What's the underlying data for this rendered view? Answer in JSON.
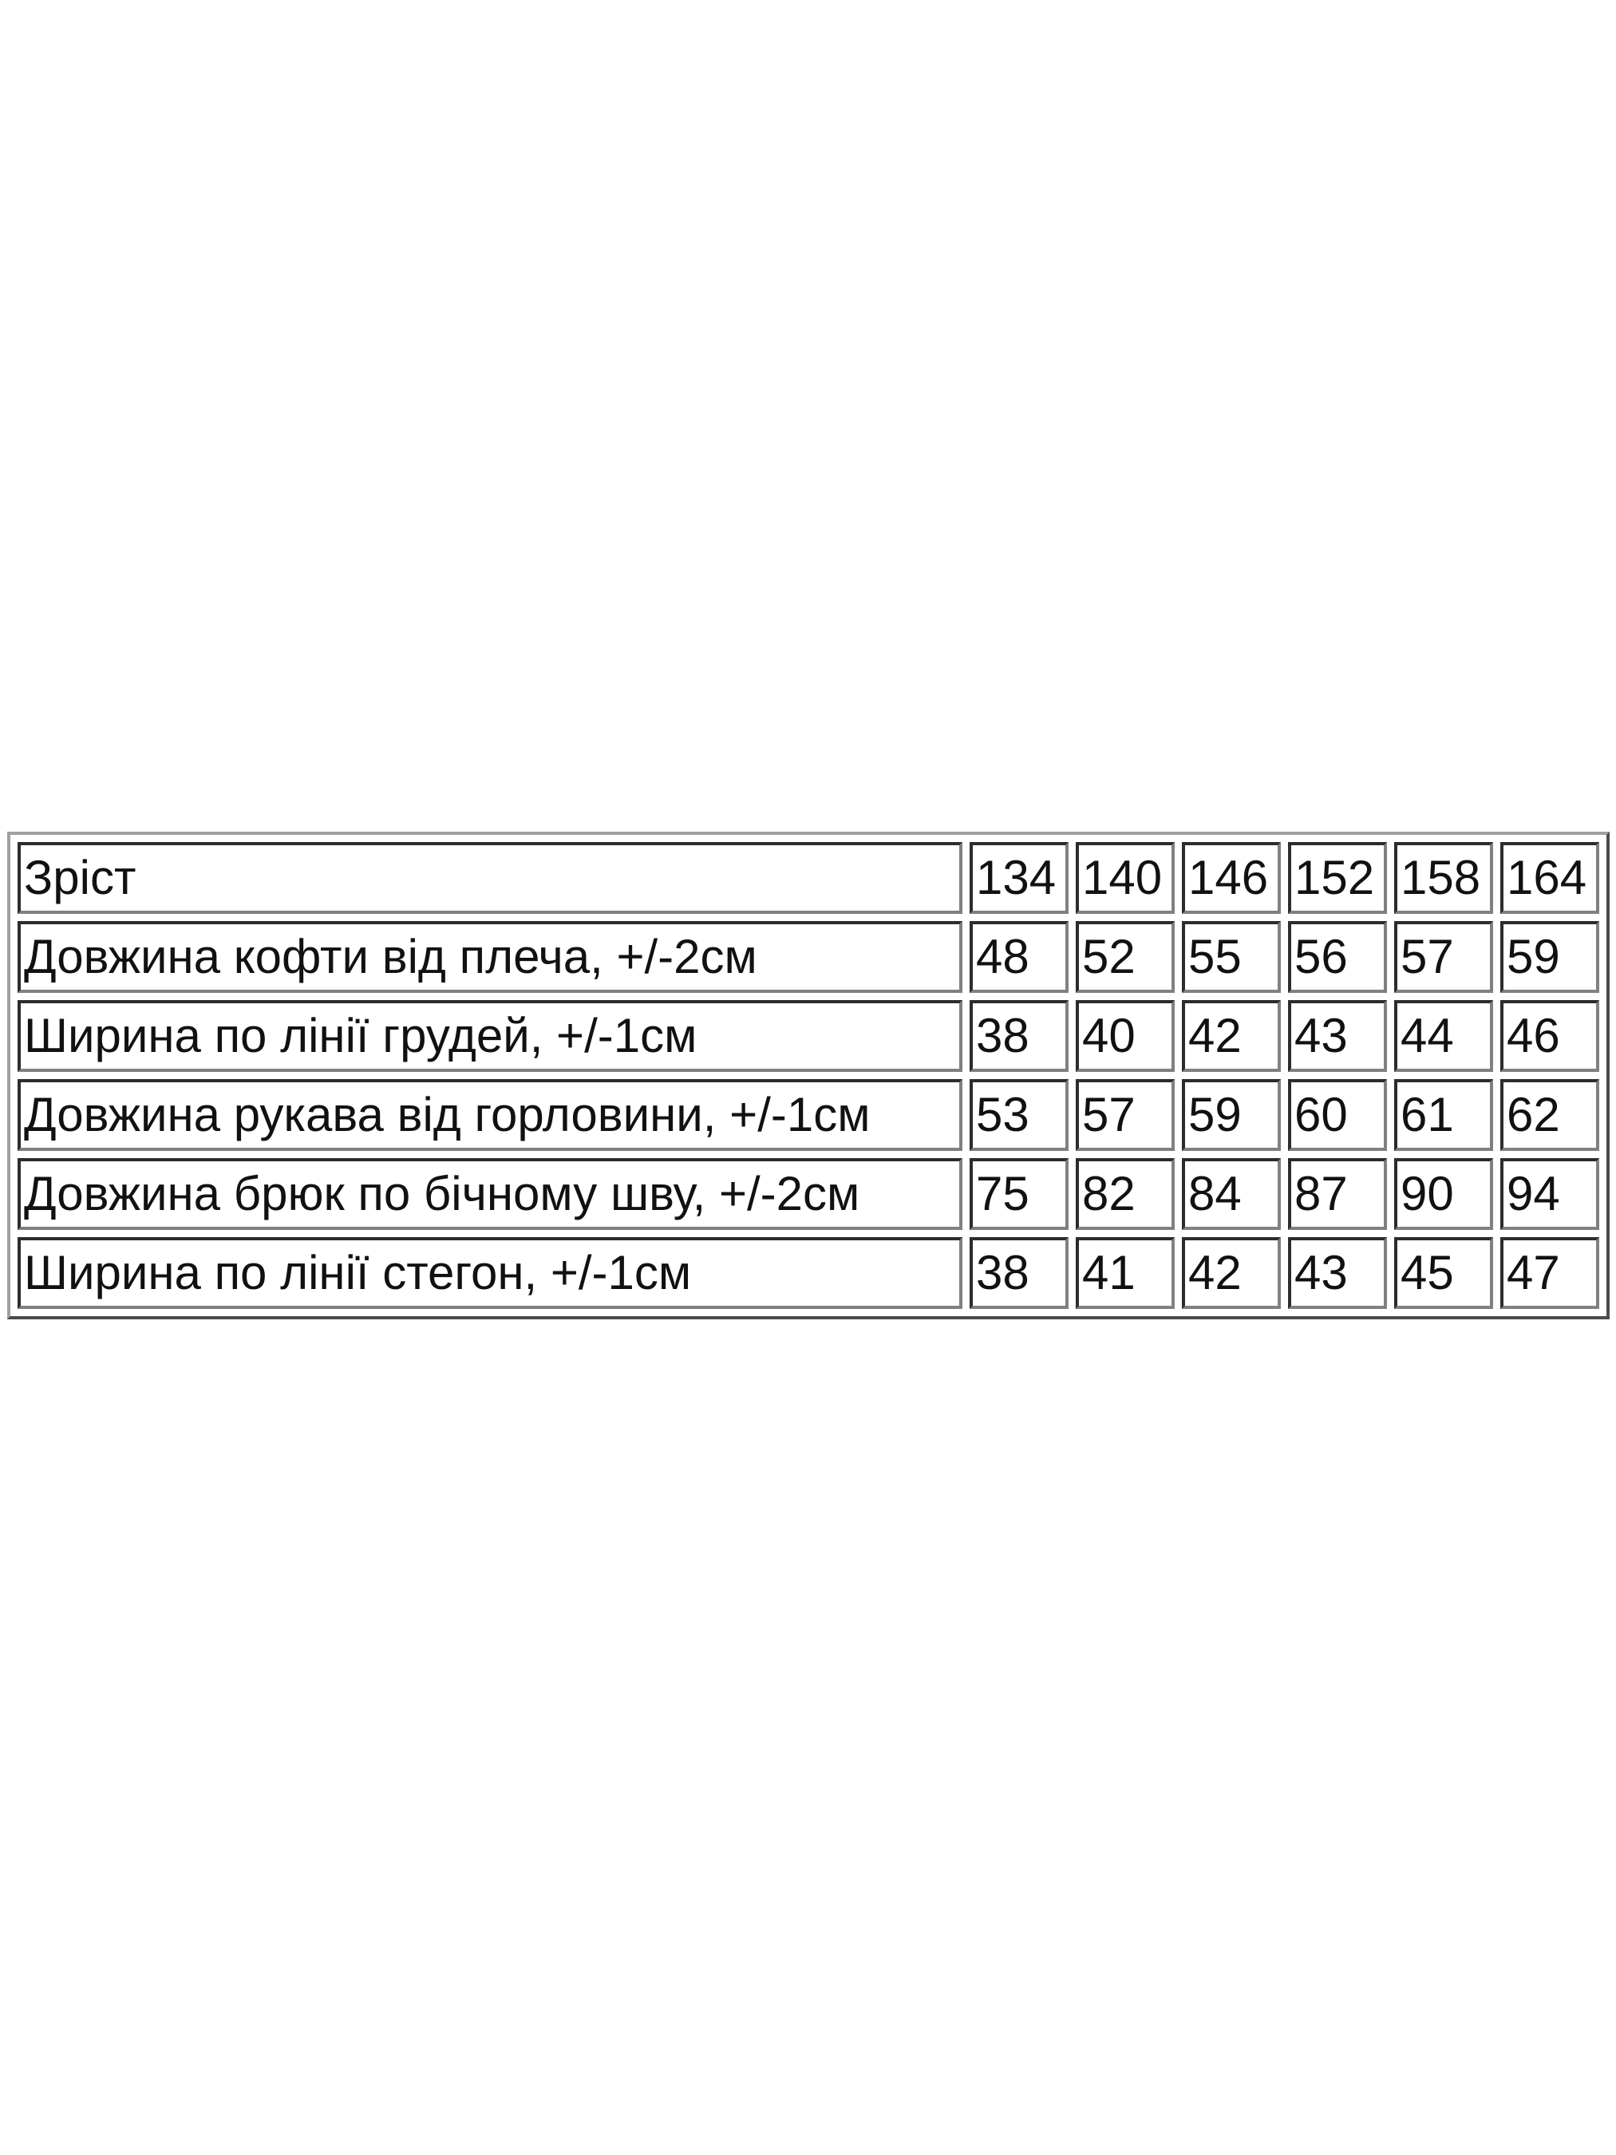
{
  "table": {
    "header": {
      "label": "Зріст",
      "sizes": [
        "134",
        "140",
        "146",
        "152",
        "158",
        "164"
      ]
    },
    "rows": [
      {
        "label": "Довжина кофти від плеча, +/-2см",
        "values": [
          "48",
          "52",
          "55",
          "56",
          "57",
          "59"
        ]
      },
      {
        "label": "Ширина по лінії грудей, +/-1см",
        "values": [
          "38",
          "40",
          "42",
          "43",
          "44",
          "46"
        ]
      },
      {
        "label": "Довжина рукава від горловини, +/-1см",
        "values": [
          "53",
          "57",
          "59",
          "60",
          "61",
          "62"
        ]
      },
      {
        "label": "Довжина брюк по бічному шву, +/-2см",
        "values": [
          "75",
          "82",
          "84",
          "87",
          "90",
          "94"
        ]
      },
      {
        "label": "Ширина по лінії стегон, +/-1см",
        "values": [
          "38",
          "41",
          "42",
          "43",
          "45",
          "47"
        ]
      }
    ]
  }
}
